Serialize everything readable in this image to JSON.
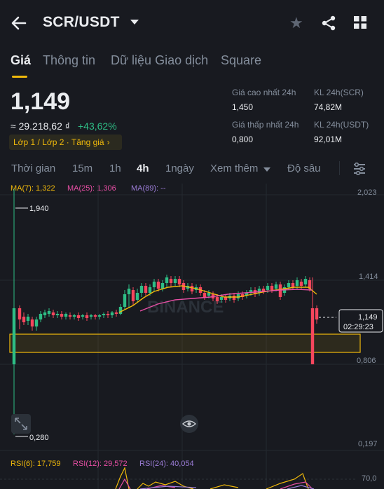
{
  "header": {
    "pair": "SCR/USDT"
  },
  "tabs": [
    {
      "label": "Giá",
      "active": true
    },
    {
      "label": "Thông tin"
    },
    {
      "label": "Dữ liệu Giao dịch"
    },
    {
      "label": "Square"
    }
  ],
  "ticker": {
    "price": "1,149",
    "fiat": "≈ 29.218,62 ₫",
    "change": "+43,62%",
    "tag": "Lớp 1 / Lớp 2 · Tăng giá"
  },
  "stats": {
    "high_label": "Giá cao nhất 24h",
    "high": "1,450",
    "low_label": "Giá thấp nhất 24h",
    "low": "0,800",
    "vol_scr_label": "KL 24h(SCR)",
    "vol_scr": "74,82M",
    "vol_usdt_label": "KL 24h(USDT)",
    "vol_usdt": "92,01M"
  },
  "intervals": {
    "time": "Thời gian",
    "m15": "15m",
    "h1": "1h",
    "h4": "4h",
    "d1": "1ngày",
    "more": "Xem thêm",
    "depth": "Độ sâu"
  },
  "ma": {
    "ma7": "MA(7): 1,322",
    "ma25": "MA(25): 1,306",
    "ma89": "MA(89): --"
  },
  "axis": {
    "y1": "2,023",
    "y2": "1,414",
    "y3": "0,806",
    "y4": "0,197"
  },
  "chart_labels": {
    "high": "1,940",
    "low": "0,280",
    "watermark": "BINANCE"
  },
  "price_marker": {
    "price": "1,149",
    "countdown": "02:29:23"
  },
  "rsi": {
    "rsi6": "RSI(6): 17,759",
    "rsi12": "RSI(12): 29,572",
    "rsi24": "RSI(24): 40,054",
    "level": "70,0"
  },
  "colors": {
    "up": "#2ebd85",
    "down": "#f6465d",
    "accent": "#f0b90b",
    "ma7": "#f0b90b",
    "ma25": "#e84fa5",
    "ma89": "#9b7cd6"
  }
}
